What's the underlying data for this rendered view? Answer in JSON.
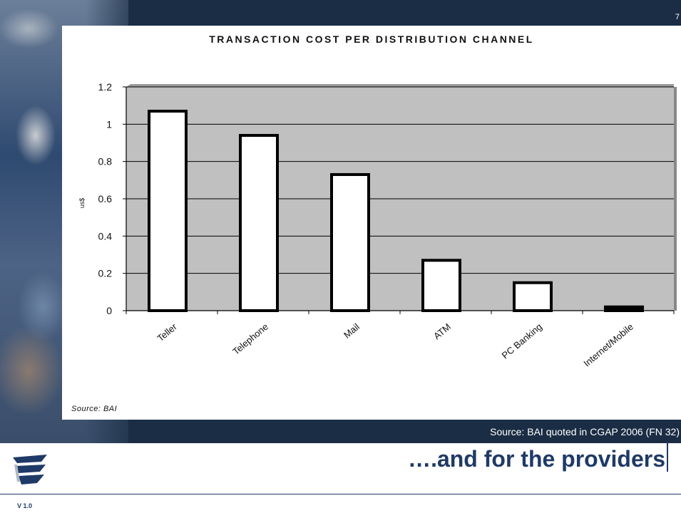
{
  "slide": {
    "page_number": "7",
    "caption": "Source: BAI quoted in CGAP 2006 (FN 32)",
    "headline": "….and for the providers",
    "version": "V 1.0"
  },
  "chart_data": {
    "type": "bar",
    "title": "TRANSACTION COST PER DISTRIBUTION CHANNEL",
    "xlabel": "",
    "ylabel": "us$",
    "ylim": [
      0,
      1.2
    ],
    "yticks": [
      "1.2",
      "1",
      "0.8",
      "0.6",
      "0.4",
      "0.2",
      "0"
    ],
    "categories": [
      "Teller",
      "Telephone",
      "Mail",
      "ATM",
      "PC Banking",
      "Internet/Mobile"
    ],
    "values": [
      1.07,
      0.94,
      0.73,
      0.27,
      0.15,
      0.02
    ],
    "grid": true,
    "legend": "none",
    "source": "Source: BAI",
    "colors": {
      "plot_background": "#c0c0c0",
      "bar_fill": "#ffffff",
      "bar_stroke": "#000000",
      "last_bar_fill": "#000000"
    }
  }
}
